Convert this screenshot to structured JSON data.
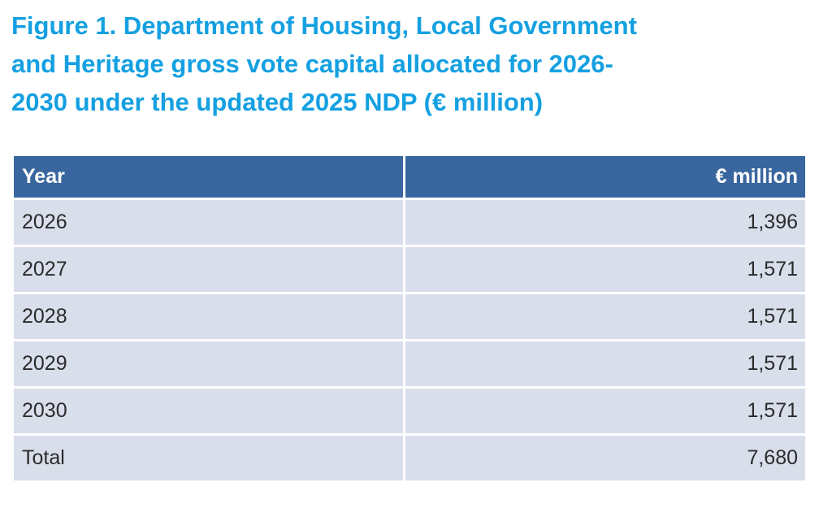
{
  "title": {
    "lines": [
      "Figure 1. Department of Housing, Local Government",
      "and Heritage gross vote capital allocated for 2026-",
      "2030 under the updated 2025 NDP (€ million)"
    ]
  },
  "table": {
    "columns": [
      {
        "label": "Year"
      },
      {
        "label": "€ million"
      }
    ],
    "rows": [
      {
        "year": "2026",
        "value": "1,396"
      },
      {
        "year": "2027",
        "value": "1,571"
      },
      {
        "year": "2028",
        "value": "1,571"
      },
      {
        "year": "2029",
        "value": "1,571"
      },
      {
        "year": "2030",
        "value": "1,571"
      },
      {
        "year": "Total",
        "value": "7,680"
      }
    ]
  },
  "colors": {
    "title_text": "#14A0E1",
    "header_bg": "#39669E",
    "header_text": "#FFFFFF",
    "row_bg": "#D9DEEB",
    "body_text": "#2B2B2B",
    "separator": "#FFFFFF"
  },
  "chart_data": {
    "type": "table",
    "title": "Figure 1. Department of Housing, Local Government and Heritage gross vote capital allocated for 2026-2030 under the updated 2025 NDP (€ million)",
    "columns": [
      "Year",
      "€ million"
    ],
    "rows": [
      [
        "2026",
        1396
      ],
      [
        "2027",
        1571
      ],
      [
        "2028",
        1571
      ],
      [
        "2029",
        1571
      ],
      [
        "2030",
        1571
      ],
      [
        "Total",
        7680
      ]
    ]
  }
}
